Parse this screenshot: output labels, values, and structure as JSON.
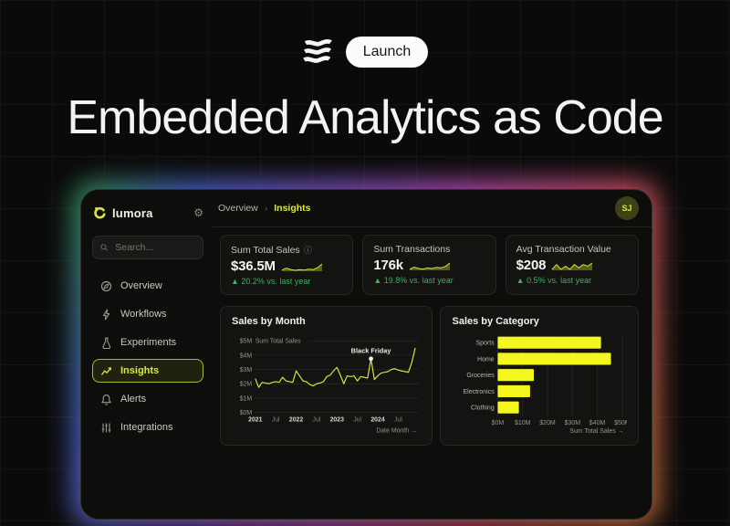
{
  "hero": {
    "headline": "Embedded Analytics as Code",
    "launch_label": "Launch"
  },
  "icons": {
    "gear_glyph": "⚙",
    "info_glyph": "ⓘ",
    "breadcrumb_separator": "›"
  },
  "colors": {
    "accent_yellow_green": "#d8e437",
    "bar_yellow": "#f3f61f",
    "delta_green": "#3fae63",
    "spark_fill": "#6d721d",
    "grid_line": "#2b2b27",
    "tick_text": "#96968e",
    "glow_gradient": [
      "#39a24f",
      "#4b6ed8",
      "#8a5ad6",
      "#c653c0",
      "#e05570",
      "#d97a35"
    ]
  },
  "dashboard": {
    "brand": "lumora",
    "breadcrumb": {
      "parent": "Overview",
      "current": "Insights"
    },
    "avatar_initials": "SJ",
    "sidebar": {
      "search_placeholder": "Search...",
      "items": [
        {
          "label": "Overview",
          "icon": "compass-icon",
          "active": false
        },
        {
          "label": "Workflows",
          "icon": "lightning-icon",
          "active": false
        },
        {
          "label": "Experiments",
          "icon": "flask-icon",
          "active": false
        },
        {
          "label": "Insights",
          "icon": "chart-line-icon",
          "active": true
        },
        {
          "label": "Alerts",
          "icon": "bell-icon",
          "active": false
        },
        {
          "label": "Integrations",
          "icon": "sliders-icon",
          "active": false
        }
      ]
    },
    "kpis": [
      {
        "label": "Sum Total Sales",
        "has_info_icon": true,
        "value": "$36.5M",
        "delta": "▲ 20.2% vs. last year",
        "sparkline": [
          4.2,
          5.0,
          4.4,
          4.1,
          4.4,
          4.2,
          4.6,
          4.4,
          5.2,
          6.8
        ]
      },
      {
        "label": "Sum Transactions",
        "has_info_icon": false,
        "value": "176k",
        "delta": "▲ 19.8% vs. last year",
        "sparkline": [
          4.0,
          4.8,
          4.3,
          4.1,
          4.5,
          4.3,
          4.7,
          4.5,
          5.0,
          6.2
        ]
      },
      {
        "label": "Avg Transaction Value",
        "has_info_icon": false,
        "value": "$208",
        "delta": "▲ 0.5% vs. last year",
        "sparkline": [
          5.0,
          5.15,
          5.0,
          5.1,
          5.0,
          5.15,
          5.05,
          5.15,
          5.1,
          5.2
        ]
      }
    ]
  },
  "chart_data": [
    {
      "type": "line",
      "title": "Sales by Month",
      "ylabel": "Sum Total Sales",
      "xlabel": "Date Month →",
      "ylim": [
        0,
        5
      ],
      "yticks": [
        "$0M",
        "$1M",
        "$2M",
        "$3M",
        "$4M",
        "$5M"
      ],
      "xticks": [
        {
          "label": "2021",
          "month": 0,
          "bold": true
        },
        {
          "label": "Jul",
          "month": 6,
          "bold": false
        },
        {
          "label": "2022",
          "month": 12,
          "bold": true
        },
        {
          "label": "Jul",
          "month": 18,
          "bold": false
        },
        {
          "label": "2023",
          "month": 24,
          "bold": true
        },
        {
          "label": "Jul",
          "month": 30,
          "bold": false
        },
        {
          "label": "2024",
          "month": 36,
          "bold": true
        },
        {
          "label": "Jul",
          "month": 42,
          "bold": false
        }
      ],
      "series": [
        {
          "name": "Sum Total Sales ($M)",
          "values": [
            2.35,
            1.75,
            2.1,
            2.05,
            2.0,
            2.1,
            2.15,
            2.1,
            2.45,
            2.2,
            2.15,
            2.1,
            2.9,
            2.55,
            2.2,
            2.15,
            1.95,
            1.85,
            2.0,
            2.05,
            2.15,
            2.5,
            2.6,
            2.9,
            3.15,
            2.6,
            2.0,
            2.55,
            2.5,
            2.55,
            2.2,
            2.5,
            2.45,
            2.4,
            3.75,
            2.3,
            2.55,
            2.75,
            2.8,
            2.85,
            3.0,
            3.05,
            2.95,
            2.9,
            2.85,
            2.8,
            3.5,
            4.5
          ]
        }
      ],
      "annotation": {
        "label": "Black Friday",
        "month": 34
      },
      "grid": true,
      "legend": "none"
    },
    {
      "type": "bar",
      "title": "Sales by Category",
      "orientation": "horizontal",
      "categories": [
        "Sports",
        "Home",
        "Groceries",
        "Electronics",
        "Clothing"
      ],
      "values": [
        41.5,
        45.5,
        14.5,
        13,
        8.5
      ],
      "xlabel": "Sum Total Sales →",
      "xlim": [
        0,
        50
      ],
      "xticks": [
        "$0M",
        "$10M",
        "$20M",
        "$30M",
        "$40M",
        "$50M"
      ],
      "grid": true,
      "legend": "none"
    }
  ]
}
